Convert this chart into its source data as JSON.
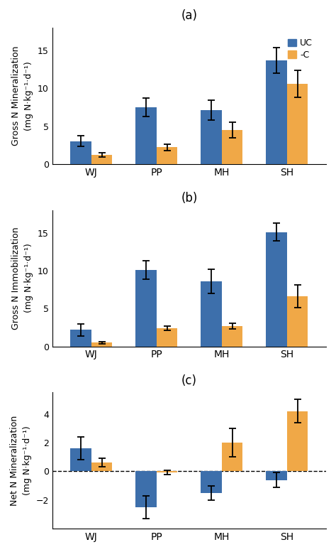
{
  "categories": [
    "WJ",
    "PP",
    "MH",
    "SH"
  ],
  "blue_color": "#3D6FAB",
  "orange_color": "#F0A847",
  "panel_labels": [
    "(a)",
    "(b)",
    "(c)"
  ],
  "panel_a": {
    "ylabel": "Gross N Mineralization\n(mg N·kg⁻¹·d⁻¹)",
    "UC_values": [
      3.0,
      7.5,
      7.1,
      13.7
    ],
    "UC_errors": [
      0.7,
      1.2,
      1.3,
      1.7
    ],
    "C_values": [
      1.2,
      2.2,
      4.5,
      10.6
    ],
    "C_errors": [
      0.3,
      0.4,
      1.0,
      1.8
    ],
    "ylim": [
      0,
      18
    ],
    "yticks": [
      0,
      5,
      10,
      15
    ]
  },
  "panel_b": {
    "ylabel": "Gross N Immobilization\n(mg N·kg⁻¹·d⁻¹)",
    "UC_values": [
      2.2,
      10.1,
      8.6,
      15.1
    ],
    "UC_errors": [
      0.8,
      1.2,
      1.6,
      1.2
    ],
    "C_values": [
      0.5,
      2.4,
      2.7,
      6.6
    ],
    "C_errors": [
      0.15,
      0.3,
      0.4,
      1.5
    ],
    "ylim": [
      0,
      18
    ],
    "yticks": [
      0,
      5,
      10,
      15
    ]
  },
  "panel_c": {
    "ylabel": "Net N Mineralization\n(mg N·kg⁻¹·d⁻¹)",
    "UC_values": [
      1.6,
      -2.5,
      -1.5,
      -0.6
    ],
    "UC_errors": [
      0.8,
      0.8,
      0.5,
      0.5
    ],
    "C_values": [
      0.6,
      -0.1,
      2.0,
      4.2
    ],
    "C_errors": [
      0.3,
      0.15,
      1.0,
      0.8
    ],
    "ylim": [
      -4,
      5.5
    ],
    "yticks": [
      -2,
      0,
      2,
      4
    ]
  },
  "legend_UC": "UC",
  "legend_C": "-C",
  "bar_width": 0.32,
  "x_positions": [
    0,
    1,
    2,
    3
  ],
  "figsize": [
    4.74,
    7.77
  ],
  "dpi": 100,
  "background_color": "#ffffff"
}
